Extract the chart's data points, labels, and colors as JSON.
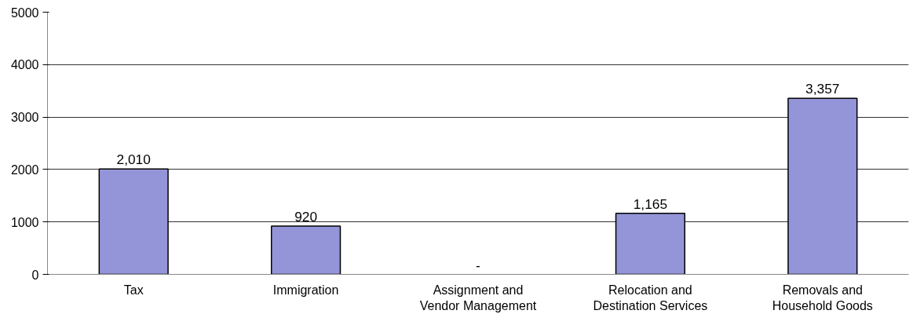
{
  "chart_data": {
    "type": "bar",
    "categories": [
      "Tax",
      "Immigration",
      "Assignment and\nVendor Management",
      "Relocation and\nDestination Services",
      "Removals and\nHousehold Goods"
    ],
    "values": [
      2010,
      920,
      0,
      1165,
      3357
    ],
    "value_labels": [
      "2,010",
      "920",
      "-",
      "1,165",
      "3,357"
    ],
    "color": "#9494d8",
    "ylim": [
      0,
      5000
    ],
    "yticks": [
      0,
      1000,
      2000,
      3000,
      4000,
      5000
    ],
    "grid": "y"
  }
}
